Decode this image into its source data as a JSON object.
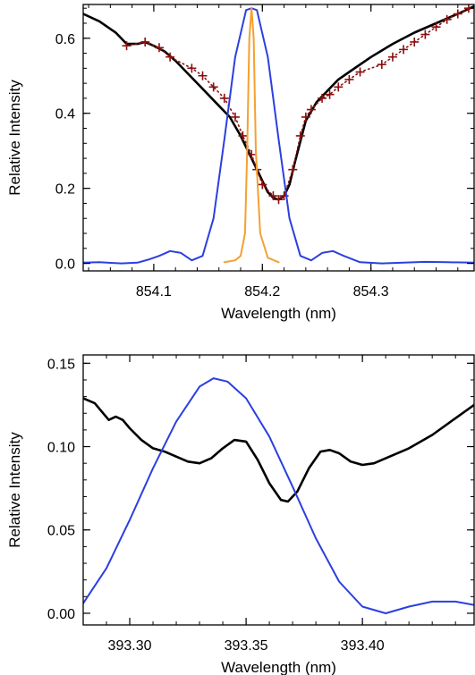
{
  "chart_data": [
    {
      "type": "line",
      "xlabel": "Wavelength (nm)",
      "ylabel": "Relative Intensity",
      "xlim": [
        854.035,
        854.395
      ],
      "ylim": [
        -0.02,
        0.69
      ],
      "xticks": [
        854.1,
        854.2,
        854.3
      ],
      "xtick_labels": [
        "854.1",
        "854.2",
        "854.3"
      ],
      "yticks": [
        0.0,
        0.2,
        0.4,
        0.6
      ],
      "ytick_labels": [
        "0.0",
        "0.2",
        "0.4",
        "0.6"
      ],
      "grid": false,
      "legend": "none",
      "series": [
        {
          "color": "#000000",
          "style": "solid",
          "x": [
            854.035,
            854.05,
            854.065,
            854.075,
            854.085,
            854.092,
            854.1,
            854.11,
            854.12,
            854.13,
            854.14,
            854.15,
            854.16,
            854.17,
            854.18,
            854.19,
            854.2,
            854.205,
            854.21,
            854.215,
            854.22,
            854.225,
            854.23,
            854.24,
            854.25,
            854.26,
            854.27,
            854.28,
            854.3,
            854.32,
            854.34,
            854.36,
            854.38,
            854.395
          ],
          "y": [
            0.665,
            0.645,
            0.615,
            0.585,
            0.585,
            0.59,
            0.58,
            0.565,
            0.54,
            0.51,
            0.48,
            0.45,
            0.42,
            0.39,
            0.34,
            0.28,
            0.22,
            0.19,
            0.175,
            0.17,
            0.18,
            0.21,
            0.27,
            0.38,
            0.43,
            0.46,
            0.49,
            0.51,
            0.55,
            0.585,
            0.615,
            0.64,
            0.665,
            0.685
          ]
        },
        {
          "color": "#8b1010",
          "style": "dotted",
          "marker": "+",
          "x": [
            854.075,
            854.092,
            854.105,
            854.115,
            854.135,
            854.145,
            854.155,
            854.165,
            854.175,
            854.182,
            854.19,
            854.195,
            854.2,
            854.21,
            854.215,
            854.22,
            854.228,
            854.235,
            854.24,
            854.245,
            854.255,
            854.262,
            854.27,
            854.28,
            854.29,
            854.31,
            854.32,
            854.33,
            854.34,
            854.35,
            854.36,
            854.37,
            854.38,
            854.39
          ],
          "y": [
            0.58,
            0.59,
            0.575,
            0.55,
            0.52,
            0.5,
            0.47,
            0.44,
            0.39,
            0.34,
            0.29,
            0.25,
            0.21,
            0.18,
            0.17,
            0.18,
            0.25,
            0.34,
            0.39,
            0.41,
            0.44,
            0.45,
            0.47,
            0.49,
            0.51,
            0.53,
            0.55,
            0.57,
            0.59,
            0.61,
            0.63,
            0.65,
            0.665,
            0.68
          ]
        },
        {
          "color": "#2b3fe0",
          "style": "solid",
          "x": [
            854.035,
            854.05,
            854.07,
            854.085,
            854.095,
            854.105,
            854.115,
            854.125,
            854.135,
            854.145,
            854.155,
            854.165,
            854.175,
            854.185,
            854.19,
            854.195,
            854.205,
            854.215,
            854.225,
            854.235,
            854.245,
            854.255,
            854.265,
            854.275,
            854.29,
            854.31,
            854.33,
            854.35,
            854.37,
            854.395
          ],
          "y": [
            0.002,
            0.003,
            0.0,
            0.002,
            0.01,
            0.02,
            0.033,
            0.028,
            0.008,
            0.02,
            0.12,
            0.33,
            0.55,
            0.675,
            0.68,
            0.675,
            0.55,
            0.33,
            0.12,
            0.02,
            0.008,
            0.028,
            0.033,
            0.02,
            0.003,
            0.0,
            0.002,
            0.004,
            0.003,
            0.002
          ]
        },
        {
          "color": "#f5a030",
          "style": "solid",
          "x": [
            854.165,
            854.175,
            854.18,
            854.184,
            854.186,
            854.188,
            854.19,
            854.192,
            854.194,
            854.198,
            854.205,
            854.215
          ],
          "y": [
            0.003,
            0.008,
            0.02,
            0.08,
            0.3,
            0.6,
            0.68,
            0.6,
            0.3,
            0.08,
            0.015,
            0.003
          ]
        }
      ]
    },
    {
      "type": "line",
      "xlabel": "Wavelength (nm)",
      "ylabel": "Relative Intensity",
      "xlim": [
        393.28,
        393.448
      ],
      "ylim": [
        -0.007,
        0.155
      ],
      "xticks": [
        393.3,
        393.35,
        393.4
      ],
      "xtick_labels": [
        "393.30",
        "393.35",
        "393.40"
      ],
      "yticks": [
        0.0,
        0.05,
        0.1,
        0.15
      ],
      "ytick_labels": [
        "0.00",
        "0.05",
        "0.10",
        "0.15"
      ],
      "grid": false,
      "legend": "none",
      "series": [
        {
          "color": "#000000",
          "style": "solid",
          "x": [
            393.28,
            393.285,
            393.288,
            393.291,
            393.294,
            393.297,
            393.3,
            393.305,
            393.31,
            393.315,
            393.32,
            393.325,
            393.33,
            393.335,
            393.34,
            393.345,
            393.35,
            393.355,
            393.36,
            393.365,
            393.368,
            393.372,
            393.377,
            393.382,
            393.386,
            393.39,
            393.395,
            393.4,
            393.405,
            393.41,
            393.42,
            393.43,
            393.44,
            393.448
          ],
          "y": [
            0.129,
            0.126,
            0.121,
            0.116,
            0.118,
            0.116,
            0.111,
            0.104,
            0.099,
            0.097,
            0.094,
            0.091,
            0.09,
            0.093,
            0.099,
            0.104,
            0.103,
            0.092,
            0.078,
            0.068,
            0.067,
            0.073,
            0.087,
            0.097,
            0.098,
            0.096,
            0.091,
            0.089,
            0.09,
            0.093,
            0.099,
            0.107,
            0.117,
            0.125
          ]
        },
        {
          "color": "#2b3fe0",
          "style": "solid",
          "x": [
            393.28,
            393.29,
            393.3,
            393.31,
            393.32,
            393.33,
            393.336,
            393.342,
            393.35,
            393.36,
            393.37,
            393.38,
            393.39,
            393.4,
            393.41,
            393.42,
            393.43,
            393.44,
            393.448
          ],
          "y": [
            0.006,
            0.027,
            0.056,
            0.087,
            0.115,
            0.136,
            0.141,
            0.139,
            0.129,
            0.106,
            0.076,
            0.045,
            0.019,
            0.004,
            0.0,
            0.004,
            0.007,
            0.007,
            0.005
          ]
        }
      ]
    }
  ]
}
